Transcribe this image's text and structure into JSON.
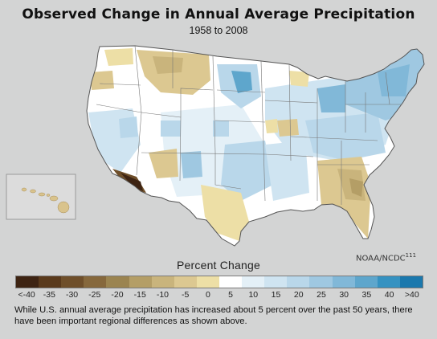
{
  "title": "Observed Change in Annual Average Precipitation",
  "subtitle": "1958 to 2008",
  "credit": "NOAA/NCDC",
  "credit_ref": "111",
  "legend": {
    "title": "Percent Change",
    "bins": [
      {
        "label": "<-40",
        "color": "#3e2413"
      },
      {
        "label": "-35",
        "color": "#5a3a1c"
      },
      {
        "label": "-30",
        "color": "#6f4f2a"
      },
      {
        "label": "-25",
        "color": "#86683c"
      },
      {
        "label": "-20",
        "color": "#9b8450"
      },
      {
        "label": "-15",
        "color": "#b49e66"
      },
      {
        "label": "-10",
        "color": "#c9b47c"
      },
      {
        "label": "-5",
        "color": "#dcc891"
      },
      {
        "label": "0",
        "color": "#eddfa6"
      },
      {
        "label": "5",
        "color": "#ffffff"
      },
      {
        "label": "10",
        "color": "#e4f0f7"
      },
      {
        "label": "15",
        "color": "#cfe4f1"
      },
      {
        "label": "20",
        "color": "#b9d7ea"
      },
      {
        "label": "25",
        "color": "#9fc8e1"
      },
      {
        "label": "30",
        "color": "#81b8d8"
      },
      {
        "label": "35",
        "color": "#5ea6cc"
      },
      {
        "label": "40",
        "color": "#3592c1"
      },
      {
        "label": ">40",
        "color": "#1a78ad"
      }
    ]
  },
  "caption": "While U.S. annual average precipitation has increased about 5 percent over the past 50 years, there have been important regional differences as shown above."
}
